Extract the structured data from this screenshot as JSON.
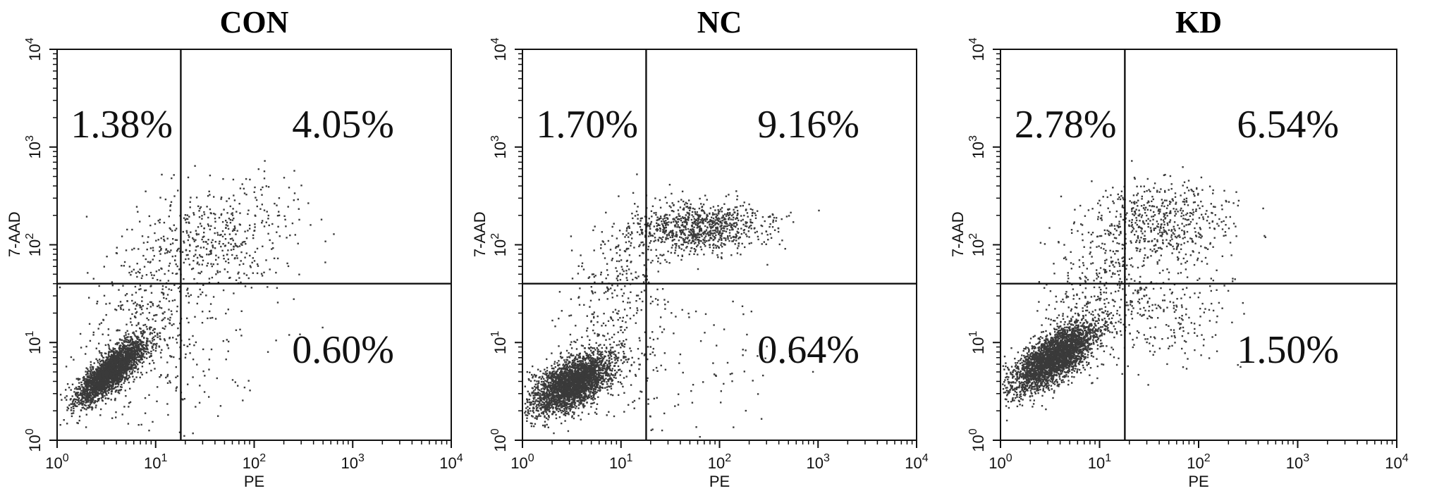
{
  "chart_data": [
    {
      "type": "scatter",
      "title": "CON",
      "xlabel": "PE",
      "ylabel": "7-AAD",
      "xscale": "log",
      "yscale": "log",
      "xlim": [
        1,
        10000
      ],
      "ylim": [
        1,
        10000
      ],
      "xticks": [
        {
          "base": "10",
          "exp": "0"
        },
        {
          "base": "10",
          "exp": "1"
        },
        {
          "base": "10",
          "exp": "2"
        },
        {
          "base": "10",
          "exp": "3"
        },
        {
          "base": "10",
          "exp": "4"
        }
      ],
      "yticks": [
        {
          "base": "10",
          "exp": "0"
        },
        {
          "base": "10",
          "exp": "1"
        },
        {
          "base": "10",
          "exp": "2"
        },
        {
          "base": "10",
          "exp": "3"
        },
        {
          "base": "10",
          "exp": "4"
        }
      ],
      "gate": {
        "x": 18,
        "y": 40
      },
      "quadrants": {
        "upper_left": "1.38%",
        "upper_right": "4.05%",
        "lower_left": "",
        "lower_right": "0.60%"
      },
      "populations": [
        {
          "cx": 3.5,
          "cy": 5.0,
          "sx": 0.17,
          "sy": 0.16,
          "rho": 0.8,
          "n": 2600
        },
        {
          "cx": 50,
          "cy": 120,
          "sx": 0.38,
          "sy": 0.28,
          "rho": 0.1,
          "n": 420
        },
        {
          "cx": 8,
          "cy": 20,
          "sx": 0.3,
          "sy": 0.45,
          "rho": 0.3,
          "n": 380
        },
        {
          "cx": 15,
          "cy": 6,
          "sx": 0.6,
          "sy": 0.4,
          "rho": 0.0,
          "n": 160
        }
      ]
    },
    {
      "type": "scatter",
      "title": "NC",
      "xlabel": "PE",
      "ylabel": "7-AAD",
      "xscale": "log",
      "yscale": "log",
      "xlim": [
        1,
        10000
      ],
      "ylim": [
        1,
        10000
      ],
      "xticks": [
        {
          "base": "10",
          "exp": "0"
        },
        {
          "base": "10",
          "exp": "1"
        },
        {
          "base": "10",
          "exp": "2"
        },
        {
          "base": "10",
          "exp": "3"
        },
        {
          "base": "10",
          "exp": "4"
        }
      ],
      "yticks": [
        {
          "base": "10",
          "exp": "0"
        },
        {
          "base": "10",
          "exp": "1"
        },
        {
          "base": "10",
          "exp": "2"
        },
        {
          "base": "10",
          "exp": "3"
        },
        {
          "base": "10",
          "exp": "4"
        }
      ],
      "gate": {
        "x": 18,
        "y": 40
      },
      "quadrants": {
        "upper_left": "1.70%",
        "upper_right": "9.16%",
        "lower_left": "",
        "lower_right": "0.64%"
      },
      "populations": [
        {
          "cx": 3.2,
          "cy": 3.8,
          "sx": 0.2,
          "sy": 0.15,
          "rho": 0.55,
          "n": 2800
        },
        {
          "cx": 60,
          "cy": 150,
          "sx": 0.35,
          "sy": 0.13,
          "rho": 0.05,
          "n": 900
        },
        {
          "cx": 9,
          "cy": 30,
          "sx": 0.28,
          "sy": 0.45,
          "rho": 0.3,
          "n": 300
        },
        {
          "cx": 25,
          "cy": 6,
          "sx": 0.6,
          "sy": 0.45,
          "rho": 0.0,
          "n": 150
        }
      ]
    },
    {
      "type": "scatter",
      "title": "KD",
      "xlabel": "PE",
      "ylabel": "7-AAD",
      "xscale": "log",
      "yscale": "log",
      "xlim": [
        1,
        10000
      ],
      "ylim": [
        1,
        10000
      ],
      "xticks": [
        {
          "base": "10",
          "exp": "0"
        },
        {
          "base": "10",
          "exp": "1"
        },
        {
          "base": "10",
          "exp": "2"
        },
        {
          "base": "10",
          "exp": "3"
        },
        {
          "base": "10",
          "exp": "4"
        }
      ],
      "yticks": [
        {
          "base": "10",
          "exp": "0"
        },
        {
          "base": "10",
          "exp": "1"
        },
        {
          "base": "10",
          "exp": "2"
        },
        {
          "base": "10",
          "exp": "3"
        },
        {
          "base": "10",
          "exp": "4"
        }
      ],
      "gate": {
        "x": 18,
        "y": 40
      },
      "quadrants": {
        "upper_left": "2.78%",
        "upper_right": "6.54%",
        "lower_left": "",
        "lower_right": "1.50%"
      },
      "populations": [
        {
          "cx": 3.5,
          "cy": 7.0,
          "sx": 0.22,
          "sy": 0.18,
          "rho": 0.7,
          "n": 2900
        },
        {
          "cx": 40,
          "cy": 180,
          "sx": 0.35,
          "sy": 0.22,
          "rho": 0.1,
          "n": 520
        },
        {
          "cx": 40,
          "cy": 20,
          "sx": 0.35,
          "sy": 0.3,
          "rho": 0.1,
          "n": 260
        },
        {
          "cx": 10,
          "cy": 40,
          "sx": 0.3,
          "sy": 0.45,
          "rho": 0.3,
          "n": 300
        }
      ]
    }
  ]
}
